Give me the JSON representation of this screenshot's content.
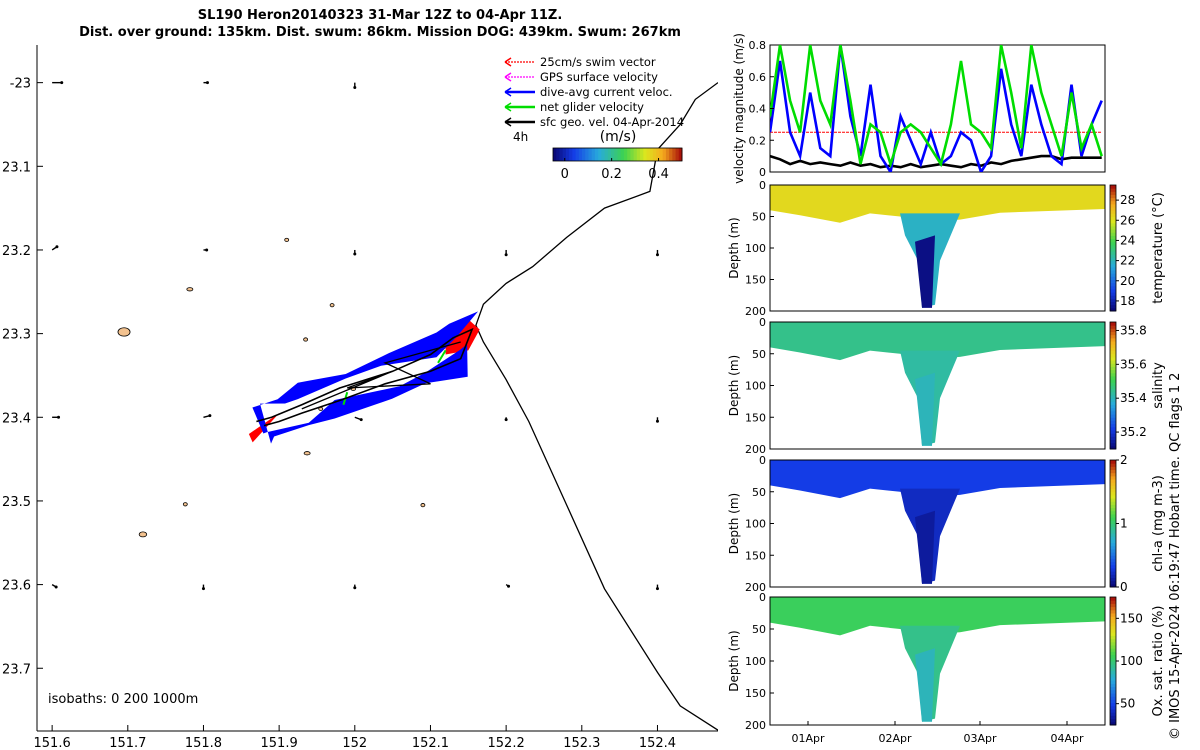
{
  "header": {
    "title_line1": "SL190 Heron20140323 31-Mar 12Z to 04-Apr 11Z.",
    "title_line2": "Dist. over ground: 135km. Dist. swum: 86km. Mission DOG: 439km. Swum: 267km",
    "credit": "© IMOS 15-Apr-2024 06:19:47 Hobart time. QC flags 1  2"
  },
  "colors": {
    "swim": "#ff0000",
    "gps": "#ff00ff",
    "current": "#0000ff",
    "net": "#00dd00",
    "sfc": "#000000",
    "track": "#000000",
    "reef_fill": "#f3c28f"
  },
  "chart_data": [
    {
      "id": "map",
      "type": "scatter",
      "title": "",
      "xlabel": "",
      "ylabel": "",
      "xlim": [
        151.58,
        152.48
      ],
      "ylim": [
        -23.775,
        -22.955
      ],
      "xticks": [
        151.6,
        151.7,
        151.8,
        151.9,
        152.0,
        152.1,
        152.2,
        152.3,
        152.4
      ],
      "xtick_labels": [
        "151.6",
        "151.7",
        "151.8",
        "151.9",
        "152",
        "152.1",
        "152.2",
        "152.3",
        "152.4"
      ],
      "yticks": [
        -23.0,
        -23.1,
        -23.2,
        -23.3,
        -23.4,
        -23.5,
        -23.6,
        -23.7
      ],
      "ytick_labels": [
        "-23",
        "23.1",
        "23.2",
        "23.3",
        "23.4",
        "23.5",
        "23.6",
        "23.7"
      ],
      "legend": {
        "position": "top-right",
        "entries": [
          "25cm/s swim vector",
          "GPS surface velocity",
          "dive-avg current veloc.",
          "net glider velocity",
          "sfc geo. vel. 04-Apr-2014"
        ]
      },
      "time_label": "4h",
      "colorbar": {
        "label": "(m/s)",
        "range": [
          -0.05,
          0.5
        ],
        "ticks": [
          0,
          0.2,
          0.4
        ],
        "tick_labels": [
          "0",
          "0.2",
          "0.4"
        ]
      },
      "isobath_note": "isobaths: 0    200   1000m",
      "isobath_1000m": {
        "lon": [
          152.48,
          152.43,
          152.4,
          152.33,
          152.28,
          152.23,
          152.2,
          152.17,
          152.16,
          152.17,
          152.2,
          152.235,
          152.28,
          152.33,
          152.39,
          152.4,
          152.43,
          152.45,
          152.48
        ],
        "lat": [
          -23.774,
          -23.745,
          -23.705,
          -23.605,
          -23.505,
          -23.405,
          -23.355,
          -23.31,
          -23.29,
          -23.265,
          -23.24,
          -23.22,
          -23.185,
          -23.15,
          -23.13,
          -23.08,
          -23.05,
          -23.02,
          -23.0
        ]
      },
      "reefs": [
        {
          "lon": 151.695,
          "lat": -23.298,
          "rx": 0.008,
          "ry": 0.005
        },
        {
          "lon": 151.782,
          "lat": -23.247,
          "rx": 0.004,
          "ry": 0.002
        },
        {
          "lon": 151.97,
          "lat": -23.266,
          "rx": 0.002,
          "ry": 0.002
        },
        {
          "lon": 151.935,
          "lat": -23.307,
          "rx": 0.002,
          "ry": 0.002
        },
        {
          "lon": 151.998,
          "lat": -23.366,
          "rx": 0.003,
          "ry": 0.002
        },
        {
          "lon": 151.955,
          "lat": -23.39,
          "rx": 0.002,
          "ry": 0.002
        },
        {
          "lon": 151.937,
          "lat": -23.443,
          "rx": 0.004,
          "ry": 0.002
        },
        {
          "lon": 152.09,
          "lat": -23.505,
          "rx": 0.002,
          "ry": 0.002
        },
        {
          "lon": 151.72,
          "lat": -23.54,
          "rx": 0.005,
          "ry": 0.003
        },
        {
          "lon": 151.776,
          "lat": -23.504,
          "rx": 0.002,
          "ry": 0.002
        },
        {
          "lon": 151.91,
          "lat": -23.188,
          "rx": 0.002,
          "ry": 0.002
        }
      ],
      "sfc_vectors": {
        "lon": [
          151.6,
          151.8,
          152.0,
          151.6,
          151.8,
          152.0,
          152.2,
          152.4,
          151.6,
          151.8,
          152.0,
          152.2,
          152.4,
          151.6,
          151.8,
          152.0,
          152.2,
          152.4
        ],
        "lat": [
          -23.0,
          -23.0,
          -23.0,
          -23.2,
          -23.2,
          -23.2,
          -23.2,
          -23.2,
          -23.4,
          -23.4,
          -23.4,
          -23.4,
          -23.4,
          -23.6,
          -23.6,
          -23.6,
          -23.6,
          -23.6
        ],
        "u": [
          0.12,
          0.05,
          0.0,
          0.06,
          0.04,
          0.0,
          0.0,
          0.0,
          0.08,
          0.08,
          0.08,
          0.0,
          0.0,
          0.05,
          0.0,
          0.0,
          0.03,
          0.0
        ],
        "v": [
          0.0,
          0.0,
          -0.06,
          0.04,
          0.0,
          -0.05,
          -0.06,
          -0.06,
          0.0,
          0.02,
          -0.03,
          -0.03,
          -0.05,
          -0.03,
          -0.05,
          -0.04,
          -0.02,
          -0.05
        ]
      },
      "glider_track": {
        "lon": [
          151.87,
          151.89,
          151.93,
          151.98,
          152.05,
          152.1,
          152.13,
          152.155,
          152.14,
          152.1,
          152.04,
          151.98,
          151.93,
          151.9,
          151.88
        ],
        "lat": [
          -23.405,
          -23.4,
          -23.385,
          -23.365,
          -23.345,
          -23.325,
          -23.305,
          -23.295,
          -23.33,
          -23.345,
          -23.36,
          -23.38,
          -23.395,
          -23.405,
          -23.41
        ]
      }
    },
    {
      "id": "velocity",
      "type": "line",
      "title": "",
      "xlabel": "",
      "ylabel": "velocity magnitude (m/s)",
      "xlim": [
        0,
        100
      ],
      "ylim": [
        0,
        0.8
      ],
      "yticks": [
        0,
        0.2,
        0.4,
        0.6,
        0.8
      ],
      "ytick_labels": [
        "0",
        "0.2",
        "0.4",
        "0.6",
        "0.8"
      ],
      "x": [
        0,
        3,
        6,
        9,
        12,
        15,
        18,
        21,
        24,
        27,
        30,
        33,
        36,
        39,
        42,
        45,
        48,
        51,
        54,
        57,
        60,
        63,
        66,
        69,
        72,
        75,
        78,
        81,
        84,
        87,
        90,
        93,
        96,
        99
      ],
      "series": [
        {
          "name": "net glider velocity",
          "color": "#00dd00",
          "values": [
            0.35,
            0.8,
            0.45,
            0.25,
            0.8,
            0.45,
            0.3,
            0.8,
            0.45,
            0.05,
            0.3,
            0.25,
            0.05,
            0.25,
            0.3,
            0.25,
            0.15,
            0.05,
            0.3,
            0.7,
            0.3,
            0.25,
            0.15,
            0.8,
            0.5,
            0.15,
            0.8,
            0.5,
            0.3,
            0.1,
            0.5,
            0.15,
            0.3,
            0.1
          ]
        },
        {
          "name": "dive-avg current veloc.",
          "color": "#0000ff",
          "values": [
            0.25,
            0.7,
            0.25,
            0.1,
            0.5,
            0.15,
            0.1,
            0.8,
            0.35,
            0.1,
            0.55,
            0.1,
            0.0,
            0.35,
            0.2,
            0.05,
            0.25,
            0.05,
            0.1,
            0.25,
            0.2,
            0.0,
            0.1,
            0.65,
            0.3,
            0.1,
            0.55,
            0.3,
            0.1,
            0.05,
            0.55,
            0.1,
            0.3,
            0.45
          ]
        },
        {
          "name": "25cm/s swim vector",
          "color": "#ff0000",
          "values": [
            0.25,
            0.25,
            0.25,
            0.25,
            0.25,
            0.25,
            0.25,
            0.25,
            0.25,
            0.25,
            0.25,
            0.25,
            0.25,
            0.25,
            0.25,
            0.25,
            0.25,
            0.25,
            0.25,
            0.25,
            0.25,
            0.25,
            0.25,
            0.25,
            0.25,
            0.25,
            0.25,
            0.25,
            0.25,
            0.25,
            0.25,
            0.25,
            0.25,
            0.25
          ]
        },
        {
          "name": "sfc geo. vel.",
          "color": "#000000",
          "values": [
            0.1,
            0.08,
            0.05,
            0.07,
            0.05,
            0.06,
            0.05,
            0.04,
            0.06,
            0.04,
            0.05,
            0.03,
            0.04,
            0.03,
            0.05,
            0.03,
            0.04,
            0.05,
            0.04,
            0.03,
            0.05,
            0.04,
            0.06,
            0.05,
            0.07,
            0.08,
            0.09,
            0.1,
            0.1,
            0.08,
            0.09,
            0.09,
            0.09,
            0.09
          ]
        }
      ]
    },
    {
      "id": "temperature",
      "type": "heatmap",
      "ylabel": "Depth (m)",
      "colorbar_label": "temperature (°C)",
      "ylim": [
        200,
        0
      ],
      "yticks": [
        0,
        50,
        100,
        150,
        200
      ],
      "clim": [
        17,
        29.5
      ],
      "cticks": [
        18,
        20,
        22,
        24,
        26,
        28
      ],
      "surface_value": 26.4,
      "deep_value": 17.2
    },
    {
      "id": "salinity",
      "type": "heatmap",
      "ylabel": "Depth (m)",
      "colorbar_label": "salinity",
      "ylim": [
        200,
        0
      ],
      "yticks": [
        0,
        50,
        100,
        150,
        200
      ],
      "clim": [
        35.1,
        35.85
      ],
      "cticks": [
        35.2,
        35.4,
        35.6,
        35.8
      ],
      "ctick_labels": [
        "35.2",
        "35.4",
        "35.6",
        "35.8"
      ],
      "surface_value": 35.45,
      "deep_value": 35.4
    },
    {
      "id": "chla",
      "type": "heatmap",
      "ylabel": "Depth (m)",
      "colorbar_label": "chl-a (mg m-3)",
      "ylim": [
        200,
        0
      ],
      "yticks": [
        0,
        50,
        100,
        150,
        200
      ],
      "clim": [
        0,
        2
      ],
      "cticks": [
        0,
        1,
        2
      ],
      "surface_value": 0.3,
      "deep_value": 0.1
    },
    {
      "id": "oxygen",
      "type": "heatmap",
      "xlabel": "",
      "ylabel": "Depth (m)",
      "colorbar_label": "Ox. sat. ratio (%)",
      "ylim": [
        200,
        0
      ],
      "yticks": [
        0,
        50,
        100,
        150,
        200
      ],
      "clim": [
        25,
        175
      ],
      "cticks": [
        50,
        100,
        150
      ],
      "xticks_labels": [
        "01Apr",
        "02Apr",
        "03Apr",
        "04Apr"
      ],
      "surface_value": 105,
      "deep_value": 85
    }
  ]
}
